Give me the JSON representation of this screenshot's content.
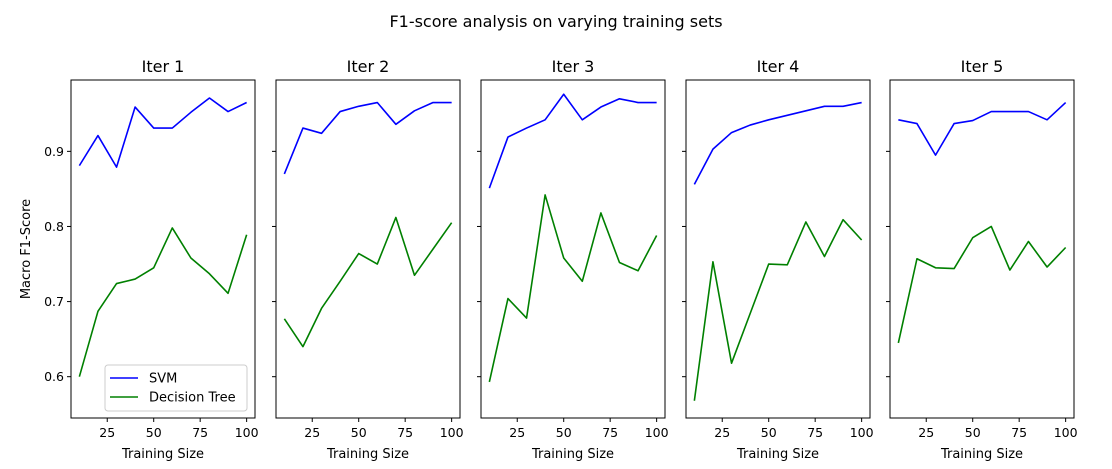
{
  "figure": {
    "title": "F1-score analysis on varying training sets",
    "ylabel": "Macro F1-Score"
  },
  "colors": {
    "svm": "#0000ff",
    "tree": "#008000"
  },
  "legend": {
    "placement": "lower-left",
    "labels": [
      "SVM",
      "Decision Tree"
    ]
  },
  "chart_data": [
    {
      "type": "line",
      "title": "Iter 1",
      "xlabel": "Training Size",
      "ylabel": "Macro F1-Score",
      "x": [
        10,
        20,
        30,
        40,
        50,
        60,
        70,
        80,
        90,
        100
      ],
      "xticks": [
        25,
        50,
        75,
        100
      ],
      "yticks": [
        0.6,
        0.7,
        0.8,
        0.9
      ],
      "ylim": [
        0.545,
        0.995
      ],
      "series": [
        {
          "name": "SVM",
          "values": [
            0.881,
            0.921,
            0.879,
            0.959,
            0.931,
            0.931,
            0.952,
            0.971,
            0.953,
            0.965
          ]
        },
        {
          "name": "Decision Tree",
          "values": [
            0.6,
            0.687,
            0.724,
            0.73,
            0.745,
            0.798,
            0.758,
            0.737,
            0.711,
            0.789
          ]
        }
      ]
    },
    {
      "type": "line",
      "title": "Iter 2",
      "xlabel": "Training Size",
      "x": [
        10,
        20,
        30,
        40,
        50,
        60,
        70,
        80,
        90,
        100
      ],
      "xticks": [
        25,
        50,
        75,
        100
      ],
      "ylim": [
        0.545,
        0.995
      ],
      "series": [
        {
          "name": "SVM",
          "values": [
            0.87,
            0.931,
            0.924,
            0.953,
            0.96,
            0.965,
            0.936,
            0.954,
            0.965,
            0.965
          ]
        },
        {
          "name": "Decision Tree",
          "values": [
            0.677,
            0.64,
            0.691,
            0.727,
            0.764,
            0.75,
            0.812,
            0.735,
            0.77,
            0.805
          ]
        }
      ]
    },
    {
      "type": "line",
      "title": "Iter 3",
      "xlabel": "Training Size",
      "x": [
        10,
        20,
        30,
        40,
        50,
        60,
        70,
        80,
        90,
        100
      ],
      "xticks": [
        25,
        50,
        75,
        100
      ],
      "ylim": [
        0.545,
        0.995
      ],
      "series": [
        {
          "name": "SVM",
          "values": [
            0.851,
            0.919,
            0.931,
            0.942,
            0.976,
            0.942,
            0.959,
            0.97,
            0.965,
            0.965
          ]
        },
        {
          "name": "Decision Tree",
          "values": [
            0.593,
            0.704,
            0.678,
            0.842,
            0.758,
            0.727,
            0.818,
            0.752,
            0.741,
            0.788
          ]
        }
      ]
    },
    {
      "type": "line",
      "title": "Iter 4",
      "xlabel": "Training Size",
      "x": [
        10,
        20,
        30,
        40,
        50,
        60,
        70,
        80,
        90,
        100
      ],
      "xticks": [
        25,
        50,
        75,
        100
      ],
      "ylim": [
        0.545,
        0.995
      ],
      "series": [
        {
          "name": "SVM",
          "values": [
            0.856,
            0.903,
            0.925,
            0.935,
            0.942,
            0.948,
            0.954,
            0.96,
            0.96,
            0.965
          ]
        },
        {
          "name": "Decision Tree",
          "values": [
            0.568,
            0.753,
            0.618,
            0.684,
            0.75,
            0.749,
            0.806,
            0.76,
            0.809,
            0.782
          ]
        }
      ]
    },
    {
      "type": "line",
      "title": "Iter 5",
      "xlabel": "Training Size",
      "x": [
        10,
        20,
        30,
        40,
        50,
        60,
        70,
        80,
        90,
        100
      ],
      "xticks": [
        25,
        50,
        75,
        100
      ],
      "ylim": [
        0.545,
        0.995
      ],
      "series": [
        {
          "name": "SVM",
          "values": [
            0.942,
            0.937,
            0.895,
            0.937,
            0.941,
            0.953,
            0.953,
            0.953,
            0.942,
            0.965
          ]
        },
        {
          "name": "Decision Tree",
          "values": [
            0.645,
            0.757,
            0.745,
            0.744,
            0.785,
            0.8,
            0.742,
            0.78,
            0.746,
            0.772
          ]
        }
      ]
    }
  ]
}
